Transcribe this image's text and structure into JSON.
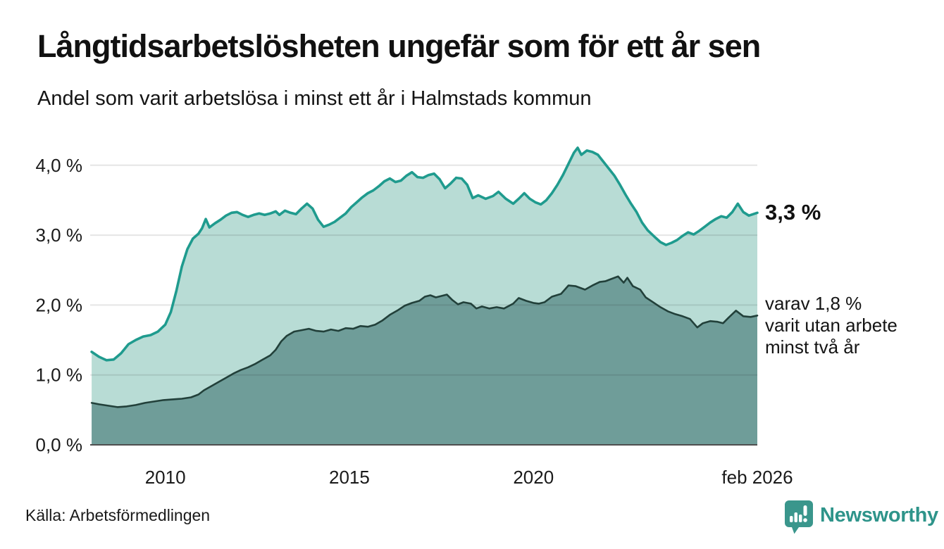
{
  "header": {
    "title": "Långtidsarbetslösheten ungefär som för ett år sen",
    "subtitle": "Andel som varit arbetslösa i minst ett år i Halmstads kommun"
  },
  "annotations": {
    "latest_total": "3,3 %",
    "latest_two_year": "varav 1,8 %\nvarit utan arbete\nminst två år"
  },
  "footer": {
    "source": "Källa: Arbetsförmedlingen",
    "brand": "Newsworthy"
  },
  "colors": {
    "total_line": "#1f9b8e",
    "total_fill": "#b8dcd5",
    "two_year_line": "#22403a",
    "two_year_fill": "#6f9d99",
    "gridline": "rgba(40,40,40,0.12)",
    "axis_baseline": "#4f4f4f",
    "text": "#1a1a1a",
    "brand_teal": "#2e948a"
  },
  "chart_data": {
    "type": "area",
    "title": "Långtidsarbetslösheten ungefär som för ett år sen",
    "subtitle": "Andel som varit arbetslösa i minst ett år i Halmstads kommun",
    "unit": "%",
    "grid": true,
    "x_axis": {
      "xlim": [
        2007.96,
        2026.08
      ],
      "ticks": [
        2010,
        2015,
        2020,
        2026.08
      ],
      "tick_labels": [
        "2010",
        "2015",
        "2020",
        "feb 2026"
      ]
    },
    "y_axis": {
      "ylim": [
        0,
        4.35
      ],
      "ticks": [
        0,
        1,
        2,
        3,
        4
      ],
      "tick_labels": [
        "0,0 %",
        "1,0 %",
        "2,0 %",
        "3,0 %",
        "4,0 %"
      ]
    },
    "series": [
      {
        "name": "Andel arbetslösa minst ett år",
        "end_label": "3,3 %",
        "end_value": 3.3,
        "points": [
          [
            2008.0,
            1.33
          ],
          [
            2008.2,
            1.26
          ],
          [
            2008.4,
            1.21
          ],
          [
            2008.6,
            1.22
          ],
          [
            2008.8,
            1.31
          ],
          [
            2009.0,
            1.44
          ],
          [
            2009.2,
            1.5
          ],
          [
            2009.4,
            1.55
          ],
          [
            2009.6,
            1.57
          ],
          [
            2009.8,
            1.62
          ],
          [
            2010.0,
            1.72
          ],
          [
            2010.15,
            1.9
          ],
          [
            2010.3,
            2.2
          ],
          [
            2010.45,
            2.55
          ],
          [
            2010.6,
            2.8
          ],
          [
            2010.75,
            2.95
          ],
          [
            2010.9,
            3.02
          ],
          [
            2011.0,
            3.1
          ],
          [
            2011.1,
            3.23
          ],
          [
            2011.2,
            3.11
          ],
          [
            2011.35,
            3.17
          ],
          [
            2011.5,
            3.22
          ],
          [
            2011.65,
            3.28
          ],
          [
            2011.8,
            3.32
          ],
          [
            2011.95,
            3.33
          ],
          [
            2012.1,
            3.29
          ],
          [
            2012.25,
            3.26
          ],
          [
            2012.4,
            3.29
          ],
          [
            2012.55,
            3.31
          ],
          [
            2012.7,
            3.29
          ],
          [
            2012.85,
            3.31
          ],
          [
            2013.0,
            3.34
          ],
          [
            2013.1,
            3.29
          ],
          [
            2013.25,
            3.35
          ],
          [
            2013.4,
            3.32
          ],
          [
            2013.55,
            3.3
          ],
          [
            2013.7,
            3.38
          ],
          [
            2013.85,
            3.45
          ],
          [
            2014.0,
            3.38
          ],
          [
            2014.15,
            3.22
          ],
          [
            2014.3,
            3.12
          ],
          [
            2014.45,
            3.15
          ],
          [
            2014.6,
            3.19
          ],
          [
            2014.75,
            3.25
          ],
          [
            2014.9,
            3.31
          ],
          [
            2015.05,
            3.4
          ],
          [
            2015.2,
            3.47
          ],
          [
            2015.35,
            3.54
          ],
          [
            2015.5,
            3.6
          ],
          [
            2015.65,
            3.64
          ],
          [
            2015.8,
            3.7
          ],
          [
            2015.95,
            3.77
          ],
          [
            2016.1,
            3.81
          ],
          [
            2016.25,
            3.76
          ],
          [
            2016.4,
            3.78
          ],
          [
            2016.55,
            3.85
          ],
          [
            2016.7,
            3.9
          ],
          [
            2016.85,
            3.83
          ],
          [
            2017.0,
            3.82
          ],
          [
            2017.15,
            3.86
          ],
          [
            2017.3,
            3.88
          ],
          [
            2017.45,
            3.8
          ],
          [
            2017.6,
            3.67
          ],
          [
            2017.75,
            3.74
          ],
          [
            2017.9,
            3.82
          ],
          [
            2018.05,
            3.81
          ],
          [
            2018.2,
            3.72
          ],
          [
            2018.35,
            3.53
          ],
          [
            2018.5,
            3.57
          ],
          [
            2018.7,
            3.52
          ],
          [
            2018.9,
            3.56
          ],
          [
            2019.05,
            3.62
          ],
          [
            2019.25,
            3.52
          ],
          [
            2019.45,
            3.45
          ],
          [
            2019.6,
            3.52
          ],
          [
            2019.75,
            3.6
          ],
          [
            2019.9,
            3.52
          ],
          [
            2020.05,
            3.47
          ],
          [
            2020.2,
            3.44
          ],
          [
            2020.35,
            3.5
          ],
          [
            2020.5,
            3.6
          ],
          [
            2020.65,
            3.72
          ],
          [
            2020.8,
            3.86
          ],
          [
            2020.95,
            4.02
          ],
          [
            2021.1,
            4.18
          ],
          [
            2021.2,
            4.25
          ],
          [
            2021.3,
            4.15
          ],
          [
            2021.45,
            4.21
          ],
          [
            2021.6,
            4.19
          ],
          [
            2021.75,
            4.15
          ],
          [
            2021.9,
            4.05
          ],
          [
            2022.05,
            3.95
          ],
          [
            2022.2,
            3.85
          ],
          [
            2022.35,
            3.72
          ],
          [
            2022.5,
            3.58
          ],
          [
            2022.65,
            3.45
          ],
          [
            2022.8,
            3.33
          ],
          [
            2022.95,
            3.18
          ],
          [
            2023.1,
            3.07
          ],
          [
            2023.3,
            2.97
          ],
          [
            2023.45,
            2.9
          ],
          [
            2023.6,
            2.86
          ],
          [
            2023.75,
            2.89
          ],
          [
            2023.9,
            2.93
          ],
          [
            2024.05,
            2.99
          ],
          [
            2024.2,
            3.04
          ],
          [
            2024.35,
            3.01
          ],
          [
            2024.5,
            3.06
          ],
          [
            2024.65,
            3.12
          ],
          [
            2024.8,
            3.18
          ],
          [
            2024.95,
            3.23
          ],
          [
            2025.1,
            3.27
          ],
          [
            2025.25,
            3.25
          ],
          [
            2025.4,
            3.33
          ],
          [
            2025.55,
            3.45
          ],
          [
            2025.7,
            3.33
          ],
          [
            2025.85,
            3.28
          ],
          [
            2026.08,
            3.32
          ]
        ]
      },
      {
        "name": "varav utan arbete minst två år",
        "end_label": "varav 1,8 % varit utan arbete minst två år",
        "end_value": 1.8,
        "points": [
          [
            2008.0,
            0.6
          ],
          [
            2008.2,
            0.58
          ],
          [
            2008.45,
            0.56
          ],
          [
            2008.7,
            0.54
          ],
          [
            2008.95,
            0.55
          ],
          [
            2009.2,
            0.57
          ],
          [
            2009.45,
            0.6
          ],
          [
            2009.7,
            0.62
          ],
          [
            2009.95,
            0.64
          ],
          [
            2010.2,
            0.65
          ],
          [
            2010.45,
            0.66
          ],
          [
            2010.7,
            0.68
          ],
          [
            2010.9,
            0.72
          ],
          [
            2011.05,
            0.78
          ],
          [
            2011.25,
            0.84
          ],
          [
            2011.45,
            0.9
          ],
          [
            2011.65,
            0.96
          ],
          [
            2011.85,
            1.02
          ],
          [
            2012.05,
            1.07
          ],
          [
            2012.25,
            1.11
          ],
          [
            2012.45,
            1.16
          ],
          [
            2012.65,
            1.22
          ],
          [
            2012.85,
            1.28
          ],
          [
            2013.0,
            1.36
          ],
          [
            2013.15,
            1.48
          ],
          [
            2013.3,
            1.56
          ],
          [
            2013.5,
            1.62
          ],
          [
            2013.7,
            1.64
          ],
          [
            2013.9,
            1.66
          ],
          [
            2014.1,
            1.63
          ],
          [
            2014.3,
            1.62
          ],
          [
            2014.5,
            1.65
          ],
          [
            2014.7,
            1.63
          ],
          [
            2014.9,
            1.67
          ],
          [
            2015.1,
            1.66
          ],
          [
            2015.3,
            1.7
          ],
          [
            2015.5,
            1.69
          ],
          [
            2015.7,
            1.72
          ],
          [
            2015.9,
            1.78
          ],
          [
            2016.1,
            1.86
          ],
          [
            2016.3,
            1.92
          ],
          [
            2016.5,
            1.99
          ],
          [
            2016.7,
            2.03
          ],
          [
            2016.9,
            2.06
          ],
          [
            2017.05,
            2.12
          ],
          [
            2017.2,
            2.14
          ],
          [
            2017.35,
            2.11
          ],
          [
            2017.5,
            2.13
          ],
          [
            2017.65,
            2.15
          ],
          [
            2017.8,
            2.07
          ],
          [
            2017.95,
            2.01
          ],
          [
            2018.1,
            2.04
          ],
          [
            2018.3,
            2.02
          ],
          [
            2018.45,
            1.95
          ],
          [
            2018.6,
            1.98
          ],
          [
            2018.8,
            1.95
          ],
          [
            2019.0,
            1.97
          ],
          [
            2019.2,
            1.95
          ],
          [
            2019.45,
            2.02
          ],
          [
            2019.6,
            2.1
          ],
          [
            2019.8,
            2.06
          ],
          [
            2020.0,
            2.03
          ],
          [
            2020.15,
            2.02
          ],
          [
            2020.3,
            2.04
          ],
          [
            2020.5,
            2.12
          ],
          [
            2020.75,
            2.16
          ],
          [
            2020.95,
            2.28
          ],
          [
            2021.15,
            2.27
          ],
          [
            2021.4,
            2.22
          ],
          [
            2021.6,
            2.28
          ],
          [
            2021.8,
            2.33
          ],
          [
            2021.95,
            2.34
          ],
          [
            2022.1,
            2.37
          ],
          [
            2022.3,
            2.41
          ],
          [
            2022.45,
            2.32
          ],
          [
            2022.55,
            2.39
          ],
          [
            2022.7,
            2.27
          ],
          [
            2022.9,
            2.22
          ],
          [
            2023.05,
            2.11
          ],
          [
            2023.25,
            2.04
          ],
          [
            2023.45,
            1.97
          ],
          [
            2023.65,
            1.91
          ],
          [
            2023.85,
            1.87
          ],
          [
            2024.05,
            1.84
          ],
          [
            2024.25,
            1.8
          ],
          [
            2024.45,
            1.68
          ],
          [
            2024.6,
            1.74
          ],
          [
            2024.8,
            1.77
          ],
          [
            2025.0,
            1.76
          ],
          [
            2025.15,
            1.74
          ],
          [
            2025.3,
            1.82
          ],
          [
            2025.5,
            1.92
          ],
          [
            2025.7,
            1.84
          ],
          [
            2025.9,
            1.83
          ],
          [
            2026.08,
            1.85
          ]
        ]
      }
    ]
  }
}
